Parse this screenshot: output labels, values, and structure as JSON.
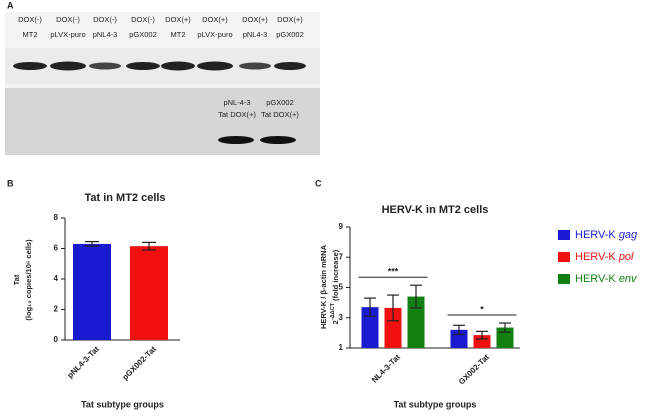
{
  "panel_a": {
    "label": "A",
    "lanes": [
      {
        "treatment": "DOX(-)",
        "sample": "MT2"
      },
      {
        "treatment": "DOX(-)",
        "sample": "pLVX-puro"
      },
      {
        "treatment": "DOX(-)",
        "sample": "pNL4-3"
      },
      {
        "treatment": "DOX(-)",
        "sample": "pGX002"
      },
      {
        "treatment": "DOX(+)",
        "sample": "MT2"
      },
      {
        "treatment": "DOX(+)",
        "sample": "pLVX-puro"
      },
      {
        "treatment": "DOX(+)",
        "sample": "pNL4-3"
      },
      {
        "treatment": "DOX(+)",
        "sample": "pGX002"
      }
    ],
    "lower_labels": [
      {
        "line1": "pNL-4-3",
        "line2": "Tat DOX(+)"
      },
      {
        "line1": "pGX002",
        "line2": "Tat DOX(+)"
      }
    ]
  },
  "chart_data": [
    {
      "panel": "B",
      "type": "bar",
      "title": "Tat in MT2 cells",
      "y_label": [
        "Tat",
        "(log₁₀ copies/10⁶ cells)"
      ],
      "x_label": "Tat subtype groups",
      "categories": [
        "pNL4-3-Tat",
        "pGX002-Tat"
      ],
      "values": [
        6.3,
        6.15
      ],
      "errors": [
        0.15,
        0.25
      ],
      "colors": [
        "#1a1ad0",
        "#f01010"
      ],
      "ylim": [
        0,
        8
      ],
      "yticks": [
        0,
        2,
        4,
        6,
        8
      ]
    },
    {
      "panel": "C",
      "type": "grouped_bar",
      "title": "HERV-K in MT2 cells",
      "y_label": [
        "HERV-K / β-actin mRNA",
        "2-ΔΔCT (fold increase)"
      ],
      "x_label": "Tat subtype groups",
      "categories": [
        "NL4-3-Tat",
        "GX002-Tat"
      ],
      "series": [
        {
          "name": "HERV-K gag",
          "color": "#1a1ad0",
          "values": [
            3.7,
            2.2
          ],
          "errors": [
            0.6,
            0.3
          ]
        },
        {
          "name": "HERV-K pol",
          "color": "#f01010",
          "values": [
            3.65,
            1.85
          ],
          "errors": [
            0.85,
            0.25
          ]
        },
        {
          "name": "HERV-K env",
          "color": "#108010",
          "values": [
            4.4,
            2.35
          ],
          "errors": [
            0.75,
            0.3
          ]
        }
      ],
      "significance": [
        "***",
        "*"
      ],
      "legend": "right",
      "ylim": [
        1,
        9
      ],
      "yticks": [
        1,
        3,
        5,
        7,
        9
      ]
    }
  ]
}
